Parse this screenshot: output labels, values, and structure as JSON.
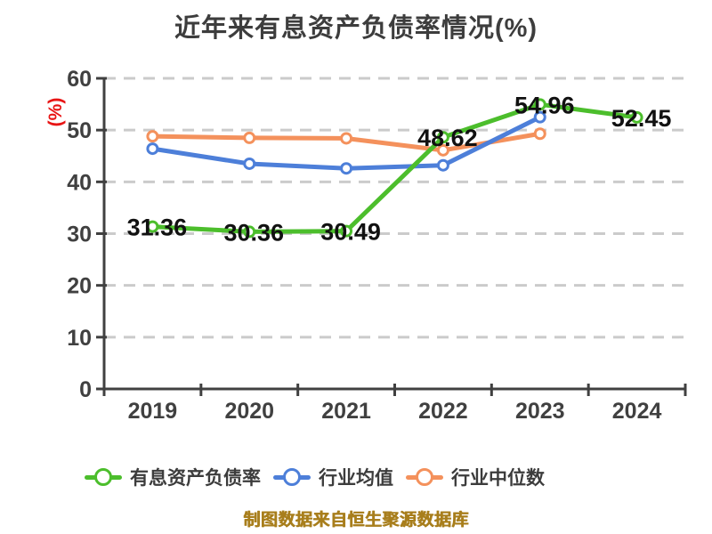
{
  "title": "近年来有息资产负债率情况(%)",
  "footer": "制图数据来自恒生聚源数据库",
  "colors": {
    "title": "#3d3d3d",
    "axis": "#404040",
    "axis_text": "#404040",
    "grid": "#cbcbcb",
    "ylabel": "#e81414",
    "data_label": "#111111",
    "legend_text": "#3c3c3c",
    "footer": "#a87e1c",
    "background": "#ffffff"
  },
  "chart_data": {
    "type": "line",
    "title": "近年来有息资产负债率情况(%)",
    "x": [
      "2019",
      "2020",
      "2021",
      "2022",
      "2023",
      "2024"
    ],
    "xlabel": "",
    "ylabel": "(%)",
    "ylim": [
      0,
      60
    ],
    "yticks": [
      0,
      10,
      20,
      30,
      40,
      50,
      60
    ],
    "grid": "horizontal-dashed",
    "legend_position": "bottom",
    "marker": "circle-white-fill",
    "series": [
      {
        "name": "有息资产负债率",
        "color": "#4cbe2c",
        "values": [
          31.36,
          30.36,
          30.49,
          48.62,
          54.96,
          52.45
        ],
        "show_labels": true
      },
      {
        "name": "行业均值",
        "color": "#4d7fd9",
        "values": [
          46.4,
          43.5,
          42.6,
          43.2,
          52.5,
          null
        ],
        "show_labels": false
      },
      {
        "name": "行业中位数",
        "color": "#f4915c",
        "values": [
          48.8,
          48.5,
          48.4,
          46.1,
          49.3,
          null
        ],
        "show_labels": false
      }
    ],
    "annotations": [
      "31.36",
      "30.36",
      "30.49",
      "48.62",
      "54.96",
      "52.45"
    ]
  }
}
